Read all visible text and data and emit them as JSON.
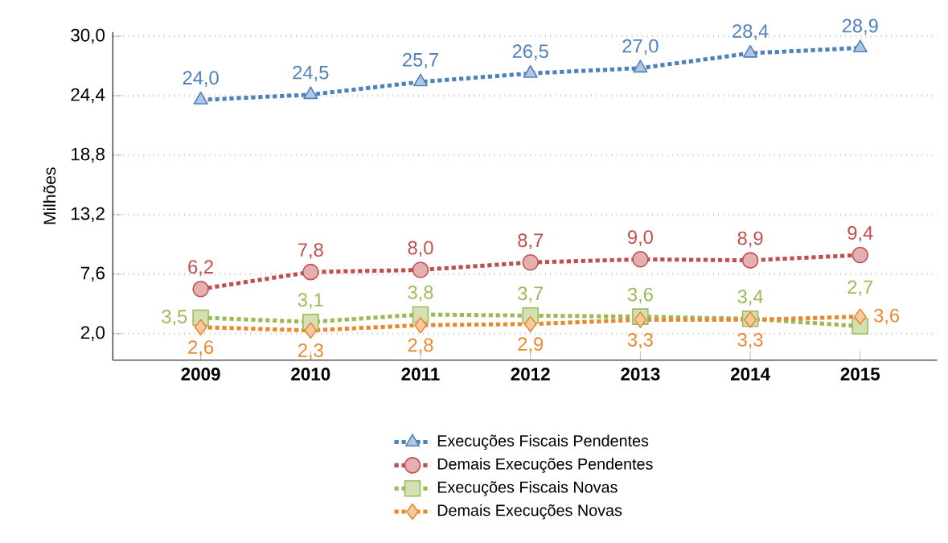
{
  "chart_data": {
    "type": "line",
    "ylabel": "Milhões",
    "categories": [
      "2009",
      "2010",
      "2011",
      "2012",
      "2013",
      "2014",
      "2015"
    ],
    "series": [
      {
        "name": "Execuções Fiscais Pendentes",
        "color": "#4f81bd",
        "marker": "triangle",
        "values": [
          24.0,
          24.5,
          25.7,
          26.5,
          27.0,
          28.4,
          28.9
        ],
        "value_labels": [
          "24,0",
          "24,5",
          "25,7",
          "26,5",
          "27,0",
          "28,4",
          "28,9"
        ]
      },
      {
        "name": "Demais Execuções Pendentes",
        "color": "#c0504d",
        "marker": "circle",
        "values": [
          6.2,
          7.8,
          8.0,
          8.7,
          9.0,
          8.9,
          9.4
        ],
        "value_labels": [
          "6,2",
          "7,8",
          "8,0",
          "8,7",
          "9,0",
          "8,9",
          "9,4"
        ]
      },
      {
        "name": "Execuções Fiscais Novas",
        "color": "#9bbb59",
        "marker": "square",
        "values": [
          3.5,
          3.1,
          3.8,
          3.7,
          3.6,
          3.4,
          2.7
        ],
        "value_labels": [
          "3,5",
          "3,1",
          "3,8",
          "3,7",
          "3,6",
          "3,4",
          "2,7"
        ]
      },
      {
        "name": "Demais Execuções Novas",
        "color": "#e8892e",
        "marker": "diamond",
        "values": [
          2.6,
          2.3,
          2.8,
          2.9,
          3.3,
          3.3,
          3.6
        ],
        "value_labels": [
          "2,6",
          "2,3",
          "2,8",
          "2,9",
          "3,3",
          "3,3",
          "3,6"
        ]
      }
    ],
    "ylim": [
      -0.5,
      30.4
    ],
    "yticks": [
      {
        "value": 2.0,
        "label": "2,0"
      },
      {
        "value": 7.6,
        "label": "7,6"
      },
      {
        "value": 13.2,
        "label": "13,2"
      },
      {
        "value": 18.8,
        "label": "18,8"
      },
      {
        "value": 24.4,
        "label": "24,4"
      },
      {
        "value": 30.0,
        "label": "30,0"
      }
    ],
    "grid": "y",
    "legend": "bottom",
    "line_style": "dotted"
  }
}
